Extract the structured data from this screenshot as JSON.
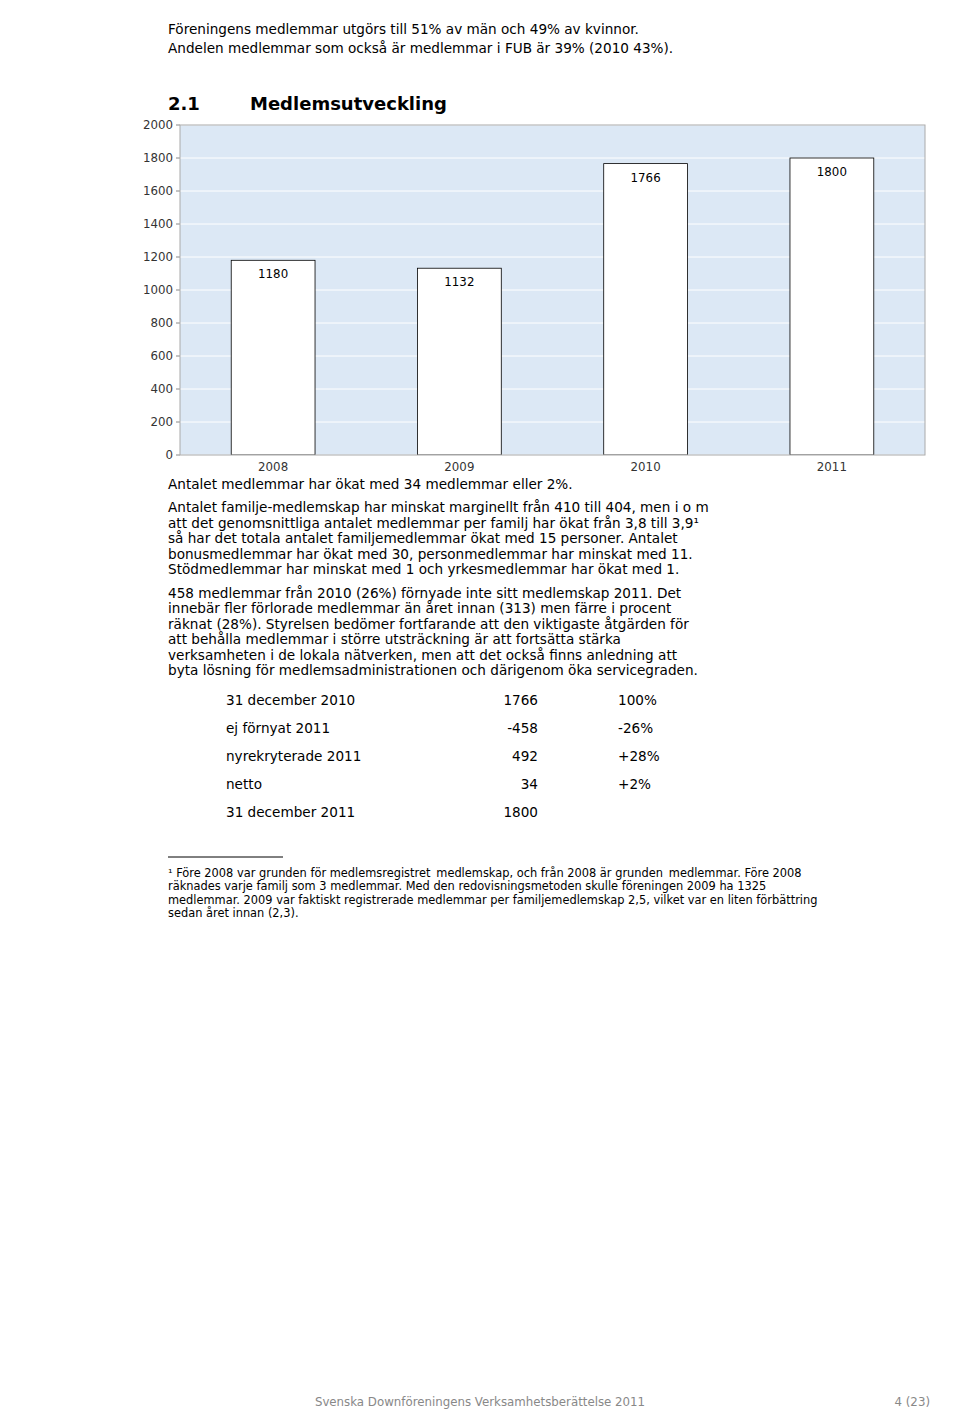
{
  "chart_data": {
    "type": "bar",
    "categories": [
      "2008",
      "2009",
      "2010",
      "2011"
    ],
    "values": [
      1180,
      1132,
      1766,
      1800
    ],
    "color": "#ffffff",
    "ylim": [
      0,
      2000
    ],
    "yticks": [
      0,
      200,
      400,
      600,
      800,
      1000,
      1200,
      1400,
      1600,
      1800,
      2000
    ],
    "grid": true,
    "data_labels": true
  },
  "page": {
    "top_text_1": "Föreningens medlemmar utgörs till 51% av män och 49% av kvinnor.",
    "top_text_2": "Andelen medlemmar som också är medlemmar i FUB är 39% (2010 43%).",
    "section_number": "2.1",
    "section_title": "Medlemsutveckling",
    "para1": "Antalet medlemmar har ökat med 34 medlemmar eller 2%.",
    "para2_lines": [
      "Antalet familje-medlemskap har minskat marginellt från 410 till 404, men i o m",
      "att det genomsnittliga antalet medlemmar per familj har ökat från 3,8 till 3,9¹",
      "så har det totala antalet familjemedlemmar ökat med 15 personer. Antalet",
      "bonusmedlemmar har ökat med 30, personmedlemmar har minskat med 11.",
      "Stödmedlemmar har minskat med 1 och yrkesmedlemmar har ökat med 1."
    ],
    "para3_lines": [
      "458 medlemmar från 2010 (26%) förnyade inte sitt medlemskap 2011. Det",
      "innebär fler förlorade medlemmar än året innan (313) men färre i procent",
      "räknat (28%). Styrelsen bedömer fortfarande att den viktigaste åtgärden för",
      "att behålla medlemmar i större utsträckning är att fortsätta stärka",
      "verksamheten i de lokala nätverken, men att det också finns anledning att",
      "byta lösning för medlemsadministrationen och därigenom öka servicegraden."
    ],
    "table_rows": [
      {
        "label": "31 december 2010",
        "value1": "1766",
        "value2": "100%"
      },
      {
        "label": "ej förnyat 2011",
        "value1": "-458",
        "value2": "-26%"
      },
      {
        "label": "nyrekryterade 2011",
        "value1": "492",
        "value2": "+28%"
      },
      {
        "label": "netto",
        "value1": "34",
        "value2": "+2%"
      },
      {
        "label": "31 december 2011",
        "value1": "1800"
      }
    ],
    "footnote_lines": [
      "¹ Före 2008 var grunden för medlemsregistret  medlemskap, och från 2008 är grunden  medlemmar. Före 2008",
      "räknades varje familj som 3 medlemmar. Med den redovisningsmetoden skulle föreningen 2009 ha 1325",
      "medlemmar. 2009 var faktiskt registrerade medlemmar per familjemedlemskap 2,5, vilket var en liten förbättring",
      "sedan året innan (2,3)."
    ],
    "footer_text": "Svenska Downföreningens Verksamhetsberättelse 2011",
    "footer_page": "4 (23)"
  }
}
